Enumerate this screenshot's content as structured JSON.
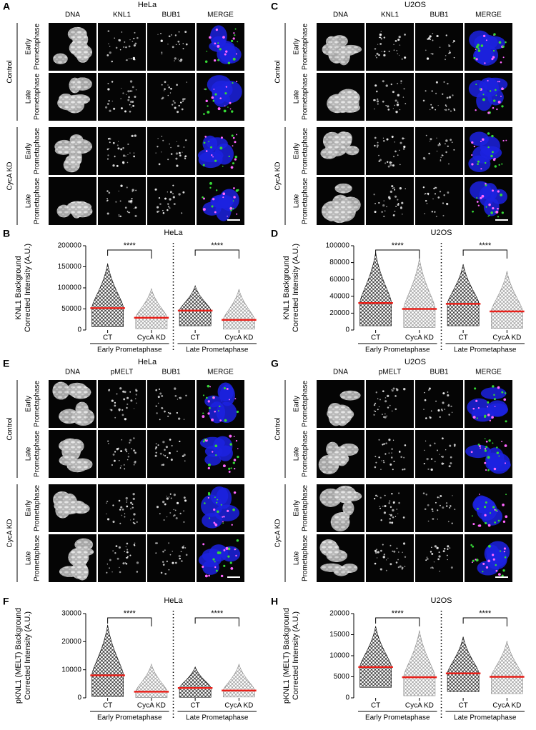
{
  "image_panels": [
    {
      "label": "A",
      "title": "HeLa",
      "channels": [
        "DNA",
        "KNL1",
        "BUB1",
        "MERGE"
      ],
      "channel_colors": [
        "#2f3bff",
        "#2ecc2e",
        "#e040e0",
        "#000000"
      ],
      "groups": [
        {
          "name": "Control",
          "rows": [
            [
              "Early",
              "Prometaphase"
            ],
            [
              "Late",
              "Prometaphase"
            ]
          ]
        },
        {
          "name": "CycA KD",
          "rows": [
            [
              "Early",
              "Prometaphase"
            ],
            [
              "Late",
              "Prometaphase"
            ]
          ]
        }
      ]
    },
    {
      "label": "C",
      "title": "U2OS",
      "channels": [
        "DNA",
        "KNL1",
        "BUB1",
        "MERGE"
      ],
      "channel_colors": [
        "#2f3bff",
        "#2ecc2e",
        "#e040e0",
        "#000000"
      ],
      "groups": [
        {
          "name": "Control",
          "rows": [
            [
              "Early",
              "Prometaphase"
            ],
            [
              "Late",
              "Prometaphase"
            ]
          ]
        },
        {
          "name": "CycA KD",
          "rows": [
            [
              "Early",
              "Prometaphase"
            ],
            [
              "Late",
              "Prometaphase"
            ]
          ]
        }
      ]
    },
    {
      "label": "E",
      "title": "HeLa",
      "channels": [
        "DNA",
        "pMELT",
        "BUB1",
        "MERGE"
      ],
      "channel_colors": [
        "#2f3bff",
        "#2ecc2e",
        "#e040e0",
        "#000000"
      ],
      "groups": [
        {
          "name": "Control",
          "rows": [
            [
              "Early",
              "Prometaphase"
            ],
            [
              "Late",
              "Prometaphase"
            ]
          ]
        },
        {
          "name": "CycA KD",
          "rows": [
            [
              "Early",
              "Prometaphase"
            ],
            [
              "Late",
              "Prometaphase"
            ]
          ]
        }
      ]
    },
    {
      "label": "G",
      "title": "U2OS",
      "channels": [
        "DNA",
        "pMELT",
        "BUB1",
        "MERGE"
      ],
      "channel_colors": [
        "#2f3bff",
        "#2ecc2e",
        "#e040e0",
        "#000000"
      ],
      "groups": [
        {
          "name": "Control",
          "rows": [
            [
              "Early",
              "Prometaphase"
            ],
            [
              "Late",
              "Prometaphase"
            ]
          ]
        },
        {
          "name": "CycA KD",
          "rows": [
            [
              "Early",
              "Prometaphase"
            ],
            [
              "Late",
              "Prometaphase"
            ]
          ]
        }
      ]
    }
  ],
  "chart_data": [
    {
      "type": "swarm",
      "label": "B",
      "title": "HeLa",
      "ylabel": [
        "KNL1 Background",
        "Corrected Intensity (A.U.)"
      ],
      "categories": [
        "CT",
        "CycA KD",
        "CT",
        "CycA KD"
      ],
      "groups": [
        "Early Prometaphase",
        "Late Prometaphase"
      ],
      "colors": [
        "#000000",
        "#8c8c8c",
        "#000000",
        "#8c8c8c"
      ],
      "mean_color": "#e8201a",
      "values": [
        52000,
        29000,
        46000,
        24000
      ],
      "min": [
        8000,
        3000,
        10000,
        2000
      ],
      "max": [
        158000,
        98000,
        105000,
        97000
      ],
      "significance": [
        "****",
        "****"
      ],
      "ylim": [
        0,
        200000
      ],
      "yticks": [
        0,
        50000,
        100000,
        150000,
        200000
      ]
    },
    {
      "type": "swarm",
      "label": "D",
      "title": "U2OS",
      "ylabel": [
        "KNL1 Background",
        "Corrected Intensity (A.U.)"
      ],
      "categories": [
        "CT",
        "CycA KD",
        "CT",
        "CycA KD"
      ],
      "groups": [
        "Early Prometaphase",
        "Late Prometaphase"
      ],
      "colors": [
        "#000000",
        "#8c8c8c",
        "#000000",
        "#8c8c8c"
      ],
      "mean_color": "#e8201a",
      "values": [
        32000,
        25000,
        31000,
        22000
      ],
      "min": [
        5000,
        3000,
        5000,
        2000
      ],
      "max": [
        92000,
        85000,
        78000,
        70000
      ],
      "significance": [
        "****",
        "****"
      ],
      "ylim": [
        0,
        100000
      ],
      "yticks": [
        0,
        20000,
        40000,
        60000,
        80000,
        100000
      ]
    },
    {
      "type": "swarm",
      "label": "F",
      "title": "HeLa",
      "ylabel": [
        "pKNL1 (MELT) Background",
        "Corrected Intensity (A.U.)"
      ],
      "categories": [
        "CT",
        "CycA KD",
        "CT",
        "CycA KD"
      ],
      "groups": [
        "Early Prometaphase",
        "Late Prometaphase"
      ],
      "colors": [
        "#000000",
        "#8c8c8c",
        "#000000",
        "#8c8c8c"
      ],
      "mean_color": "#e8201a",
      "values": [
        8000,
        2200,
        3500,
        2600
      ],
      "min": [
        500,
        100,
        200,
        300
      ],
      "max": [
        26000,
        12000,
        11000,
        12000
      ],
      "significance": [
        "****",
        "****"
      ],
      "ylim": [
        0,
        30000
      ],
      "yticks": [
        0,
        10000,
        20000,
        30000
      ]
    },
    {
      "type": "swarm",
      "label": "H",
      "title": "U2OS",
      "ylabel": [
        "pKNL1 (MELT) Background",
        "Corrected Intensity (A.U.)"
      ],
      "categories": [
        "CT",
        "CycA KD",
        "CT",
        "CycA KD"
      ],
      "groups": [
        "Early Prometaphase",
        "Late Prometaphase"
      ],
      "colors": [
        "#000000",
        "#8c8c8c",
        "#000000",
        "#8c8c8c"
      ],
      "mean_color": "#e8201a",
      "values": [
        7300,
        4900,
        5800,
        5000
      ],
      "min": [
        2500,
        500,
        1500,
        1000
      ],
      "max": [
        17000,
        16000,
        14500,
        13500
      ],
      "significance": [
        "****",
        "****"
      ],
      "ylim": [
        0,
        20000
      ],
      "yticks": [
        0,
        5000,
        10000,
        15000,
        20000
      ]
    }
  ]
}
